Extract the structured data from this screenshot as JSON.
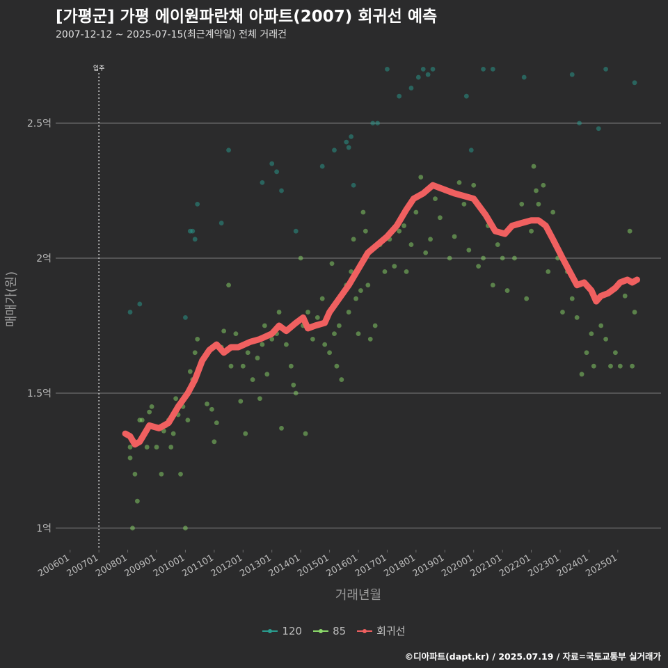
{
  "title": "[가평군] 가평 에이원파란채 아파트(2007) 회귀선 예측",
  "subtitle": "2007-12-12 ~ 2025-07-15(최근계약일) 전체 거래건",
  "caption": "©디아파트(dapt.kr) / 2025.07.19 / 자료=국토교통부 실거래가",
  "colors": {
    "background": "#2b2b2c",
    "grid": "#6b6b6b",
    "series_120": "#2a9d8f",
    "series_85": "#8bd96a",
    "regression": "#f06060"
  },
  "chart_data": {
    "type": "scatter",
    "xlabel": "거래년월",
    "ylabel": "매매가(원)",
    "xlim": [
      "2005-07",
      "2026-07"
    ],
    "ylim": [
      0.92,
      2.75
    ],
    "y_unit": "억",
    "x_ticks": [
      "200601",
      "200701",
      "200801",
      "200901",
      "201001",
      "201101",
      "201201",
      "201301",
      "201401",
      "201501",
      "201601",
      "201701",
      "201801",
      "201901",
      "202001",
      "202101",
      "202201",
      "202301",
      "202401",
      "202501"
    ],
    "y_ticks": [
      {
        "value": 1,
        "label": "1억"
      },
      {
        "value": 1.5,
        "label": "1.5억"
      },
      {
        "value": 2,
        "label": "2억"
      },
      {
        "value": 2.5,
        "label": "2.5억"
      }
    ],
    "annotation": {
      "text": "입주",
      "date": "2007-01"
    },
    "grid": true,
    "legend_position": "bottom",
    "series": [
      {
        "name": "120",
        "kind": "points",
        "points": [
          [
            "2008-02",
            1.8
          ],
          [
            "2008-06",
            1.83
          ],
          [
            "2010-01",
            1.78
          ],
          [
            "2010-03",
            2.1
          ],
          [
            "2010-04",
            2.1
          ],
          [
            "2010-05",
            2.07
          ],
          [
            "2010-06",
            2.2
          ],
          [
            "2011-04",
            2.13
          ],
          [
            "2011-07",
            2.4
          ],
          [
            "2012-09",
            2.28
          ],
          [
            "2013-01",
            2.35
          ],
          [
            "2013-03",
            2.32
          ],
          [
            "2013-05",
            2.25
          ],
          [
            "2013-11",
            2.1
          ],
          [
            "2014-10",
            2.34
          ],
          [
            "2015-03",
            2.4
          ],
          [
            "2015-08",
            2.43
          ],
          [
            "2015-09",
            2.41
          ],
          [
            "2015-10",
            2.45
          ],
          [
            "2015-11",
            2.27
          ],
          [
            "2016-07",
            2.5
          ],
          [
            "2016-09",
            2.5
          ],
          [
            "2017-01",
            2.7
          ],
          [
            "2017-06",
            2.6
          ],
          [
            "2017-11",
            2.63
          ],
          [
            "2018-02",
            2.67
          ],
          [
            "2018-04",
            2.7
          ],
          [
            "2018-06",
            2.68
          ],
          [
            "2018-08",
            2.7
          ],
          [
            "2019-10",
            2.6
          ],
          [
            "2019-12",
            2.4
          ],
          [
            "2020-05",
            2.7
          ],
          [
            "2020-09",
            2.7
          ],
          [
            "2021-10",
            2.67
          ],
          [
            "2023-06",
            2.68
          ],
          [
            "2023-09",
            2.5
          ],
          [
            "2024-05",
            2.48
          ],
          [
            "2024-08",
            2.7
          ],
          [
            "2025-08",
            2.65
          ]
        ]
      },
      {
        "name": "85",
        "kind": "points",
        "points": [
          [
            "2007-12",
            1.35
          ],
          [
            "2008-02",
            1.3
          ],
          [
            "2008-02",
            1.26
          ],
          [
            "2008-03",
            1.0
          ],
          [
            "2008-04",
            1.2
          ],
          [
            "2008-05",
            1.1
          ],
          [
            "2008-06",
            1.4
          ],
          [
            "2008-07",
            1.4
          ],
          [
            "2008-09",
            1.3
          ],
          [
            "2008-10",
            1.43
          ],
          [
            "2008-11",
            1.45
          ],
          [
            "2009-01",
            1.3
          ],
          [
            "2009-03",
            1.2
          ],
          [
            "2009-04",
            1.36
          ],
          [
            "2009-05",
            1.38
          ],
          [
            "2009-06",
            1.4
          ],
          [
            "2009-07",
            1.3
          ],
          [
            "2009-08",
            1.35
          ],
          [
            "2009-09",
            1.48
          ],
          [
            "2009-10",
            1.42
          ],
          [
            "2009-11",
            1.2
          ],
          [
            "2009-12",
            1.45
          ],
          [
            "2010-01",
            1.0
          ],
          [
            "2010-02",
            1.4
          ],
          [
            "2010-03",
            1.58
          ],
          [
            "2010-04",
            1.55
          ],
          [
            "2010-05",
            1.65
          ],
          [
            "2010-06",
            1.7
          ],
          [
            "2010-08",
            1.62
          ],
          [
            "2010-10",
            1.46
          ],
          [
            "2010-12",
            1.44
          ],
          [
            "2011-01",
            1.32
          ],
          [
            "2011-02",
            1.39
          ],
          [
            "2011-04",
            1.67
          ],
          [
            "2011-05",
            1.73
          ],
          [
            "2011-07",
            1.9
          ],
          [
            "2011-08",
            1.6
          ],
          [
            "2011-10",
            1.72
          ],
          [
            "2011-12",
            1.47
          ],
          [
            "2012-01",
            1.6
          ],
          [
            "2012-02",
            1.35
          ],
          [
            "2012-03",
            1.65
          ],
          [
            "2012-05",
            1.55
          ],
          [
            "2012-07",
            1.63
          ],
          [
            "2012-08",
            1.48
          ],
          [
            "2012-09",
            1.68
          ],
          [
            "2012-10",
            1.75
          ],
          [
            "2012-11",
            1.57
          ],
          [
            "2013-01",
            1.7
          ],
          [
            "2013-03",
            1.72
          ],
          [
            "2013-04",
            1.8
          ],
          [
            "2013-05",
            1.37
          ],
          [
            "2013-07",
            1.68
          ],
          [
            "2013-09",
            1.6
          ],
          [
            "2013-10",
            1.53
          ],
          [
            "2013-11",
            1.5
          ],
          [
            "2014-01",
            2.0
          ],
          [
            "2014-02",
            1.75
          ],
          [
            "2014-03",
            1.35
          ],
          [
            "2014-04",
            1.8
          ],
          [
            "2014-06",
            1.7
          ],
          [
            "2014-08",
            1.78
          ],
          [
            "2014-10",
            1.85
          ],
          [
            "2014-11",
            1.68
          ],
          [
            "2015-01",
            1.65
          ],
          [
            "2015-02",
            1.98
          ],
          [
            "2015-03",
            1.72
          ],
          [
            "2015-04",
            1.6
          ],
          [
            "2015-05",
            1.75
          ],
          [
            "2015-06",
            1.55
          ],
          [
            "2015-08",
            1.9
          ],
          [
            "2015-09",
            1.8
          ],
          [
            "2015-10",
            1.95
          ],
          [
            "2015-11",
            2.07
          ],
          [
            "2015-12",
            1.85
          ],
          [
            "2016-01",
            1.72
          ],
          [
            "2016-02",
            1.88
          ],
          [
            "2016-03",
            2.17
          ],
          [
            "2016-04",
            2.1
          ],
          [
            "2016-05",
            1.9
          ],
          [
            "2016-06",
            1.7
          ],
          [
            "2016-08",
            1.75
          ],
          [
            "2016-10",
            2.05
          ],
          [
            "2016-12",
            1.95
          ],
          [
            "2017-02",
            2.07
          ],
          [
            "2017-04",
            1.97
          ],
          [
            "2017-06",
            2.1
          ],
          [
            "2017-08",
            2.12
          ],
          [
            "2017-09",
            1.95
          ],
          [
            "2017-11",
            2.05
          ],
          [
            "2018-01",
            2.17
          ],
          [
            "2018-03",
            2.3
          ],
          [
            "2018-05",
            2.02
          ],
          [
            "2018-07",
            2.07
          ],
          [
            "2018-09",
            2.22
          ],
          [
            "2018-11",
            2.15
          ],
          [
            "2019-01",
            2.25
          ],
          [
            "2019-03",
            2.0
          ],
          [
            "2019-05",
            2.08
          ],
          [
            "2019-07",
            2.28
          ],
          [
            "2019-09",
            2.2
          ],
          [
            "2019-11",
            2.03
          ],
          [
            "2020-01",
            2.27
          ],
          [
            "2020-03",
            1.97
          ],
          [
            "2020-05",
            2.0
          ],
          [
            "2020-07",
            2.12
          ],
          [
            "2020-09",
            1.9
          ],
          [
            "2020-11",
            2.05
          ],
          [
            "2021-01",
            2.0
          ],
          [
            "2021-03",
            1.88
          ],
          [
            "2021-06",
            2.0
          ],
          [
            "2021-09",
            2.2
          ],
          [
            "2021-11",
            1.85
          ],
          [
            "2022-01",
            2.1
          ],
          [
            "2022-02",
            2.34
          ],
          [
            "2022-03",
            2.25
          ],
          [
            "2022-04",
            2.2
          ],
          [
            "2022-06",
            2.27
          ],
          [
            "2022-08",
            1.95
          ],
          [
            "2022-10",
            2.17
          ],
          [
            "2022-12",
            2.0
          ],
          [
            "2023-02",
            1.8
          ],
          [
            "2023-04",
            1.95
          ],
          [
            "2023-06",
            1.85
          ],
          [
            "2023-08",
            1.78
          ],
          [
            "2023-10",
            1.57
          ],
          [
            "2023-12",
            1.65
          ],
          [
            "2024-02",
            1.72
          ],
          [
            "2024-03",
            1.6
          ],
          [
            "2024-05",
            1.85
          ],
          [
            "2024-06",
            1.75
          ],
          [
            "2024-08",
            1.7
          ],
          [
            "2024-10",
            1.6
          ],
          [
            "2024-12",
            1.65
          ],
          [
            "2025-02",
            1.6
          ],
          [
            "2025-04",
            1.86
          ],
          [
            "2025-06",
            2.1
          ],
          [
            "2025-07",
            1.6
          ],
          [
            "2025-08",
            1.8
          ]
        ]
      },
      {
        "name": "회귀선",
        "kind": "line",
        "points": [
          [
            "2007-12",
            1.35
          ],
          [
            "2008-02",
            1.34
          ],
          [
            "2008-04",
            1.31
          ],
          [
            "2008-06",
            1.32
          ],
          [
            "2008-08",
            1.35
          ],
          [
            "2008-10",
            1.38
          ],
          [
            "2009-02",
            1.37
          ],
          [
            "2009-06",
            1.39
          ],
          [
            "2009-10",
            1.45
          ],
          [
            "2010-02",
            1.5
          ],
          [
            "2010-05",
            1.55
          ],
          [
            "2010-08",
            1.62
          ],
          [
            "2010-11",
            1.66
          ],
          [
            "2011-02",
            1.68
          ],
          [
            "2011-05",
            1.65
          ],
          [
            "2011-08",
            1.67
          ],
          [
            "2011-11",
            1.67
          ],
          [
            "2012-04",
            1.69
          ],
          [
            "2012-08",
            1.7
          ],
          [
            "2013-01",
            1.72
          ],
          [
            "2013-04",
            1.75
          ],
          [
            "2013-07",
            1.73
          ],
          [
            "2013-11",
            1.76
          ],
          [
            "2014-02",
            1.78
          ],
          [
            "2014-04",
            1.74
          ],
          [
            "2014-07",
            1.75
          ],
          [
            "2014-11",
            1.76
          ],
          [
            "2015-01",
            1.8
          ],
          [
            "2015-05",
            1.85
          ],
          [
            "2015-09",
            1.9
          ],
          [
            "2016-01",
            1.96
          ],
          [
            "2016-05",
            2.02
          ],
          [
            "2016-09",
            2.05
          ],
          [
            "2017-01",
            2.08
          ],
          [
            "2017-05",
            2.12
          ],
          [
            "2017-09",
            2.18
          ],
          [
            "2017-12",
            2.22
          ],
          [
            "2018-04",
            2.24
          ],
          [
            "2018-08",
            2.27
          ],
          [
            "2018-11",
            2.26
          ],
          [
            "2019-02",
            2.25
          ],
          [
            "2019-05",
            2.24
          ],
          [
            "2019-09",
            2.23
          ],
          [
            "2020-01",
            2.22
          ],
          [
            "2020-06",
            2.16
          ],
          [
            "2020-10",
            2.1
          ],
          [
            "2021-02",
            2.09
          ],
          [
            "2021-05",
            2.12
          ],
          [
            "2021-09",
            2.13
          ],
          [
            "2022-01",
            2.14
          ],
          [
            "2022-04",
            2.14
          ],
          [
            "2022-07",
            2.12
          ],
          [
            "2022-10",
            2.07
          ],
          [
            "2023-02",
            2.0
          ],
          [
            "2023-05",
            1.95
          ],
          [
            "2023-08",
            1.9
          ],
          [
            "2023-11",
            1.91
          ],
          [
            "2024-02",
            1.88
          ],
          [
            "2024-04",
            1.84
          ],
          [
            "2024-06",
            1.86
          ],
          [
            "2024-09",
            1.87
          ],
          [
            "2024-12",
            1.89
          ],
          [
            "2025-02",
            1.91
          ],
          [
            "2025-05",
            1.92
          ],
          [
            "2025-07",
            1.91
          ],
          [
            "2025-09",
            1.92
          ]
        ]
      }
    ]
  },
  "legend": {
    "title": "",
    "items": [
      {
        "label": "120",
        "key": "series_120"
      },
      {
        "label": "85",
        "key": "series_85"
      },
      {
        "label": "회귀선",
        "key": "regression"
      }
    ]
  }
}
